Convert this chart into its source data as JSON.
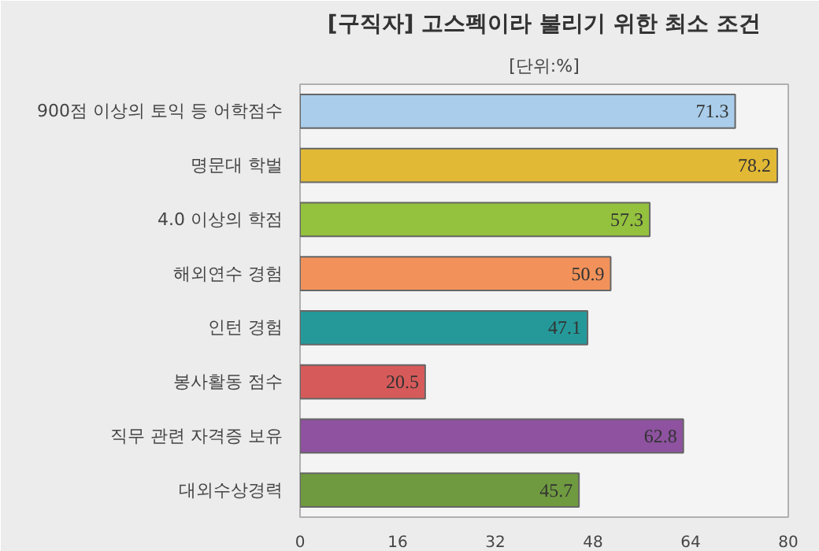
{
  "chart_data": {
    "type": "bar",
    "orientation": "horizontal",
    "title": "[구직자] 고스펙이라 불리기 위한 최소 조건",
    "subtitle": "[단위:%]",
    "categories": [
      "900점 이상의 토익 등 어학점수",
      "명문대 학벌",
      "4.0 이상의 학점",
      "해외연수 경험",
      "인턴 경험",
      "봉사활동 점수",
      "직무 관련 자격증 보유",
      "대외수상경력"
    ],
    "values": [
      71.3,
      78.2,
      57.3,
      50.9,
      47.1,
      20.5,
      62.8,
      45.7
    ],
    "colors": [
      "#a9cdea",
      "#e2b935",
      "#94c13e",
      "#f2925a",
      "#25999a",
      "#d75a5a",
      "#8e52a0",
      "#6f9a40"
    ],
    "xlim": [
      0,
      80
    ],
    "xticks": [
      0,
      16,
      32,
      48,
      64,
      80
    ],
    "grid": false,
    "data_labels": true
  }
}
